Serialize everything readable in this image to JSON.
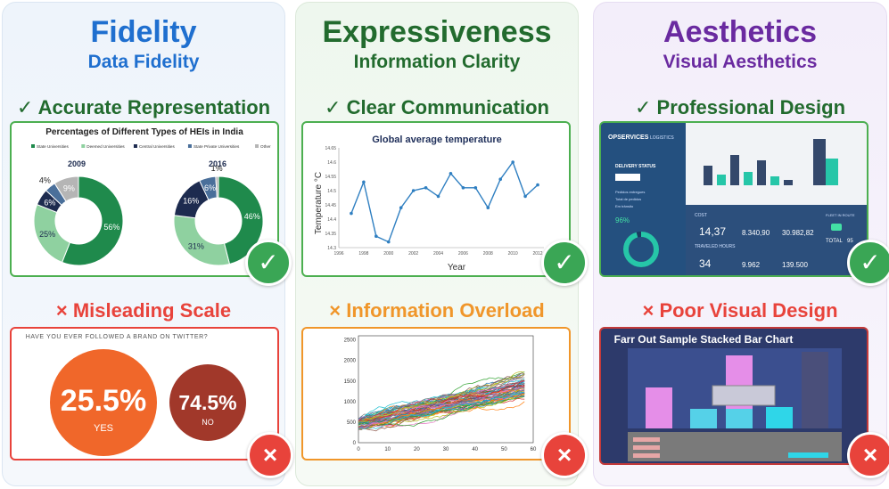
{
  "columns": [
    {
      "title": "Fidelity",
      "subtitle": "Data Fidelity",
      "color": "#1f6fcf",
      "good_label": "Accurate Representation",
      "bad_label": "Misleading Scale"
    },
    {
      "title": "Expressiveness",
      "subtitle": "Information Clarity",
      "color": "#226b2e",
      "good_label": "Clear Communication",
      "bad_label": "Information Overload"
    },
    {
      "title": "Aesthetics",
      "subtitle": "Visual Aesthetics",
      "color": "#6a2aa0",
      "good_label": "Professional Design",
      "bad_label": "Poor Visual Design"
    }
  ],
  "check_icon": "✓",
  "x_icon": "×",
  "colors": {
    "good": "#3aa655",
    "bad": "#e8433b",
    "bad_orange": "#f0962a"
  },
  "hei": {
    "title": "Percentages of Different Types of HEIs in India",
    "legend": [
      "State Universities",
      "Deemed Universities",
      "Central Universities",
      "State Private Universities",
      "Other"
    ],
    "legend_colors": [
      "#1f8a4c",
      "#8fd1a0",
      "#1d2b4f",
      "#4a6f9a",
      "#b5b5b5"
    ],
    "y2009": "2009",
    "y2016": "2016",
    "d2009": [
      {
        "v": 56,
        "l": "56%"
      },
      {
        "v": 25,
        "l": "25%"
      },
      {
        "v": 6,
        "l": "6%"
      },
      {
        "v": 4,
        "l": "4%"
      },
      {
        "v": 9,
        "l": "9%"
      }
    ],
    "d2016": [
      {
        "v": 46,
        "l": "46%"
      },
      {
        "v": 31,
        "l": "31%"
      },
      {
        "v": 16,
        "l": "16%"
      },
      {
        "v": 6,
        "l": "6%"
      },
      {
        "v": 1,
        "l": "1%"
      }
    ]
  },
  "chart_data": [
    {
      "type": "line",
      "title": "Global average temperature",
      "xlabel": "Year",
      "ylabel": "Temperature °C",
      "x": [
        1997,
        1998,
        1999,
        2000,
        2001,
        2002,
        2003,
        2004,
        2005,
        2006,
        2007,
        2008,
        2009,
        2010,
        2011,
        2012
      ],
      "values": [
        14.42,
        14.53,
        14.34,
        14.32,
        14.44,
        14.5,
        14.51,
        14.48,
        14.56,
        14.51,
        14.51,
        14.44,
        14.54,
        14.6,
        14.48,
        14.52
      ],
      "xticks": [
        "1996",
        "1998",
        "2000",
        "2002",
        "2004",
        "2006",
        "2008",
        "2010",
        "2012"
      ],
      "yticks": [
        "14.3",
        "14.35",
        "14.4",
        "14.45",
        "14.5",
        "14.55",
        "14.6",
        "14.65"
      ],
      "ylim": [
        14.3,
        14.65
      ],
      "xlim": [
        1996,
        2012.5
      ]
    },
    {
      "type": "line",
      "title": "",
      "note": "many overlapping random-walk series",
      "xticks": [
        "0",
        "10",
        "20",
        "30",
        "40",
        "50",
        "60"
      ],
      "yticks": [
        "0",
        "500",
        "1000",
        "1500",
        "2000",
        "2500"
      ],
      "xlim": [
        0,
        60
      ],
      "ylim": [
        0,
        2600
      ]
    }
  ],
  "twitter": {
    "question": "HAVE YOU EVER FOLLOWED A BRAND ON TWITTER?",
    "yes_value": "25.5%",
    "yes_label": "YES",
    "no_value": "74.5%",
    "no_label": "NO"
  },
  "dashboard": {
    "logo": "OPSERVICES",
    "menu": "LOGISTICS",
    "side_title": "DELIVERY STATUS",
    "side_rows": [
      "Pedidos entregues",
      "Total de pedidos",
      "Em trânsito"
    ],
    "percent": "96%",
    "cost_label": "COST",
    "k1": "14,37",
    "k2": "8.340,90",
    "k3": "30.982,82",
    "travel_label": "TRAVELED HOURS",
    "k4": "34",
    "k5": "9.962",
    "k6": "139.500",
    "fleet_label": "FLEET IN ROUTE",
    "total_label": "TOTAL",
    "total_value": "95"
  },
  "stacked": {
    "title": "Farr Out Sample Stacked Bar Chart"
  }
}
